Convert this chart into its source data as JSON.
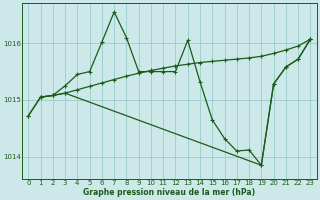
{
  "title": "Graphe pression niveau de la mer (hPa)",
  "bg_color": "#cce8e8",
  "line_color": "#1a5c1a",
  "grid_color": "#99cccc",
  "xlim": [
    -0.5,
    23.5
  ],
  "ylim": [
    1013.6,
    1016.7
  ],
  "yticks": [
    1014,
    1015,
    1016
  ],
  "xticks": [
    0,
    1,
    2,
    3,
    4,
    5,
    6,
    7,
    8,
    9,
    10,
    11,
    12,
    13,
    14,
    15,
    16,
    17,
    18,
    19,
    20,
    21,
    22,
    23
  ],
  "series_flat": {
    "x": [
      0,
      1,
      2,
      3,
      4,
      5,
      6,
      7,
      8,
      9,
      10,
      11,
      12,
      13,
      14,
      15,
      16,
      17,
      18,
      19,
      20,
      21,
      22,
      23
    ],
    "y": [
      1014.72,
      1015.05,
      1015.08,
      1015.12,
      1015.18,
      1015.24,
      1015.3,
      1015.36,
      1015.42,
      1015.47,
      1015.52,
      1015.56,
      1015.6,
      1015.63,
      1015.66,
      1015.68,
      1015.7,
      1015.72,
      1015.74,
      1015.77,
      1015.82,
      1015.88,
      1015.95,
      1016.07
    ]
  },
  "series_volatile": {
    "x": [
      1,
      2,
      3,
      4,
      5,
      6,
      7,
      8,
      9,
      10,
      11,
      12,
      13,
      14,
      15,
      16,
      17,
      18,
      19,
      20,
      21,
      22,
      23
    ],
    "y": [
      1015.05,
      1015.08,
      1015.25,
      1015.45,
      1015.5,
      1016.02,
      1016.55,
      1016.1,
      1015.5,
      1015.5,
      1015.5,
      1015.5,
      1016.05,
      1015.32,
      1014.65,
      1014.32,
      1014.1,
      1014.12,
      1013.85,
      1015.28,
      1015.58,
      1015.72,
      1016.07
    ]
  },
  "series_diagonal": {
    "x": [
      0,
      1,
      2,
      3,
      19,
      20,
      21,
      22,
      23
    ],
    "y": [
      1014.72,
      1015.05,
      1015.08,
      1015.12,
      1013.85,
      1015.28,
      1015.58,
      1015.72,
      1016.07
    ]
  }
}
